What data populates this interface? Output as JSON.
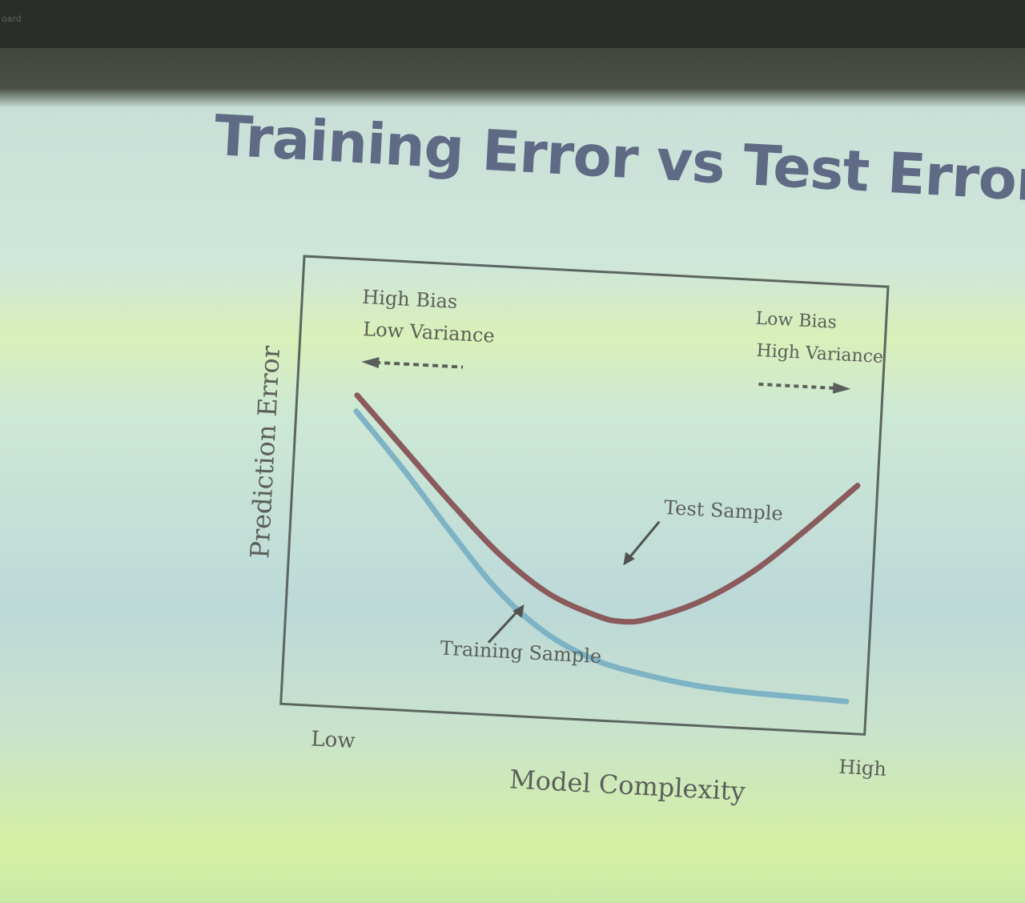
{
  "window_tag": "oard",
  "slide": {
    "title": "Training Error vs Test Error"
  },
  "chart_data": {
    "type": "line",
    "title": "Training Error vs Test Error",
    "xlabel": "Model Complexity",
    "ylabel": "Prediction Error",
    "x_tick_labels": [
      "Low",
      "High"
    ],
    "xlim": [
      0,
      1
    ],
    "ylim": [
      0,
      1
    ],
    "grid": false,
    "series": [
      {
        "name": "Test Sample",
        "color": "#8a5a5c",
        "x": [
          0.0,
          0.1,
          0.2,
          0.3,
          0.4,
          0.5,
          0.55,
          0.6,
          0.7,
          0.8,
          0.9,
          1.0
        ],
        "y": [
          0.74,
          0.61,
          0.48,
          0.36,
          0.27,
          0.22,
          0.21,
          0.22,
          0.27,
          0.35,
          0.46,
          0.58
        ]
      },
      {
        "name": "Training Sample",
        "color": "#7db3c4",
        "x": [
          0.0,
          0.1,
          0.2,
          0.3,
          0.4,
          0.5,
          0.6,
          0.7,
          0.8,
          0.9,
          1.0
        ],
        "y": [
          0.7,
          0.56,
          0.41,
          0.27,
          0.17,
          0.11,
          0.08,
          0.06,
          0.05,
          0.045,
          0.04
        ]
      }
    ],
    "annotations": [
      {
        "text_lines": [
          "High Bias",
          "Low Variance"
        ],
        "arrow_direction": "left"
      },
      {
        "text_lines": [
          "Low Bias",
          "High Variance"
        ],
        "arrow_direction": "right"
      },
      {
        "text": "Test Sample",
        "points_to": "Test Sample"
      },
      {
        "text": "Training Sample",
        "points_to": "Training Sample"
      }
    ]
  }
}
